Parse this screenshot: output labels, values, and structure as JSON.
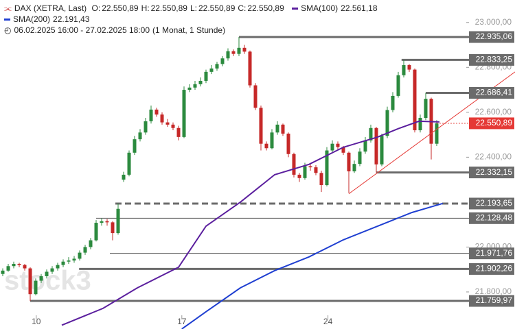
{
  "chart_data": {
    "type": "candlestick",
    "header": {
      "symbol": "DAX (XETRA, Last)",
      "fields": [
        {
          "key": "O:",
          "value": "22.550,89"
        },
        {
          "key": "H:",
          "value": "22.550,89"
        },
        {
          "key": "L:",
          "value": "22.550,89"
        },
        {
          "key": "C:",
          "value": "22.550,89"
        }
      ],
      "range": "06.02.2025 16:00 - 27.02.2025 18:00",
      "period": "(1 Monat, 1 Stunde)"
    },
    "watermark": "stock3",
    "up_color": "#2b8a3e",
    "down_color": "#c62828",
    "xlim": [
      -0.5,
      93.25
    ],
    "xticks": [
      {
        "value": 6.1,
        "label": "10"
      },
      {
        "value": 32.6,
        "label": "17"
      },
      {
        "value": 59.2,
        "label": "24"
      }
    ],
    "ylim": [
      21635,
      23100
    ],
    "yticks": [
      {
        "value": 23000,
        "label": "23.000,00"
      },
      {
        "value": 22800,
        "label": "22.800,00"
      },
      {
        "value": 22600,
        "label": "22.600,00"
      },
      {
        "value": 22400,
        "label": "22.400,00"
      },
      {
        "value": 22000,
        "label": "22.000,00"
      },
      {
        "value": 21800,
        "label": "21.800,00"
      }
    ],
    "grid": false,
    "x": [
      0,
      1,
      2,
      3,
      4,
      5,
      6,
      7,
      8,
      9,
      10,
      11,
      12,
      13,
      14,
      15,
      16,
      17,
      18,
      19,
      20,
      21,
      22,
      23,
      24,
      25,
      26,
      27,
      28,
      29,
      30,
      31,
      32,
      33,
      34,
      35,
      36,
      37,
      38,
      39,
      40,
      41,
      42,
      43,
      44,
      45,
      46,
      47,
      48,
      49,
      50,
      51,
      52,
      53,
      54,
      55,
      56,
      57,
      58,
      59,
      60,
      61,
      62,
      63,
      64,
      65,
      66,
      67,
      68,
      69,
      70,
      71,
      72,
      73,
      74,
      75,
      76,
      77,
      78,
      79
    ],
    "candles": {
      "open": [
        21880,
        21895,
        21915,
        21925,
        21920,
        21905,
        21790,
        21850,
        21870,
        21890,
        21905,
        21920,
        21935,
        21940,
        21948,
        21975,
        22000,
        22030,
        22108,
        22115,
        22110,
        22062,
        22300,
        22322,
        22420,
        22480,
        22510,
        22560,
        22612,
        22590,
        22555,
        22545,
        22530,
        22490,
        22700,
        22710,
        22725,
        22740,
        22780,
        22795,
        22815,
        22840,
        22872,
        22860,
        22887,
        22870,
        22720,
        22620,
        22460,
        22440,
        22510,
        22545,
        22505,
        22414,
        22322,
        22307,
        22360,
        22355,
        22330,
        22276,
        22430,
        22460,
        22445,
        22420,
        22337,
        22370,
        22425,
        22475,
        22530,
        22368,
        22495,
        22610,
        22673,
        22765,
        22810,
        22790,
        22520,
        22575,
        22660,
        22460
      ],
      "high": [
        21905,
        21925,
        21935,
        21930,
        21925,
        21910,
        21860,
        21880,
        21900,
        21915,
        21930,
        21945,
        21955,
        21960,
        21985,
        22010,
        22040,
        22120,
        22128,
        22125,
        22115,
        22194,
        22335,
        22430,
        22495,
        22525,
        22575,
        22630,
        22620,
        22600,
        22570,
        22555,
        22540,
        22715,
        22725,
        22740,
        22755,
        22790,
        22810,
        22825,
        22850,
        22885,
        22880,
        22935.06,
        22900,
        22875,
        22730,
        22630,
        22470,
        22525,
        22560,
        22550,
        22510,
        22420,
        22330,
        22375,
        22370,
        22365,
        22340,
        22445,
        22475,
        22470,
        22450,
        22425,
        22385,
        22440,
        22490,
        22545,
        22535,
        22505,
        22625,
        22690,
        22780,
        22833.25,
        22815,
        22795,
        22590,
        22686.41,
        22665,
        22565
      ],
      "low": [
        21870,
        21890,
        21905,
        21910,
        21895,
        21760,
        21785,
        21840,
        21860,
        21880,
        21895,
        21910,
        21925,
        21930,
        21940,
        21965,
        21990,
        22025,
        22095,
        22095,
        22030,
        22055,
        22290,
        22315,
        22410,
        22470,
        22500,
        22550,
        22580,
        22545,
        22535,
        22520,
        22475,
        22485,
        22690,
        22700,
        22715,
        22730,
        22770,
        22785,
        22805,
        22830,
        22850,
        22850,
        22860,
        22710,
        22610,
        22430,
        22430,
        22435,
        22500,
        22495,
        22400,
        22310,
        22290,
        22300,
        22340,
        22320,
        22245,
        22270,
        22420,
        22435,
        22410,
        22240,
        22330,
        22360,
        22415,
        22465,
        22332.15,
        22360,
        22485,
        22600,
        22665,
        22755,
        22780,
        22510,
        22510,
        22565,
        22390,
        22450
      ],
      "close": [
        21895,
        21915,
        21925,
        21920,
        21905,
        21790,
        21850,
        21870,
        21890,
        21905,
        21920,
        21935,
        21940,
        21948,
        21975,
        22000,
        22030,
        22108,
        22115,
        22110,
        22062,
        22170,
        22322,
        22420,
        22480,
        22510,
        22560,
        22612,
        22590,
        22555,
        22545,
        22530,
        22490,
        22700,
        22710,
        22725,
        22740,
        22780,
        22795,
        22815,
        22840,
        22872,
        22860,
        22887,
        22870,
        22720,
        22620,
        22460,
        22440,
        22510,
        22545,
        22505,
        22414,
        22322,
        22307,
        22360,
        22355,
        22330,
        22276,
        22430,
        22460,
        22445,
        22420,
        22337,
        22370,
        22425,
        22475,
        22530,
        22368,
        22495,
        22610,
        22673,
        22765,
        22810,
        22790,
        22520,
        22575,
        22660,
        22460,
        22551
      ]
    },
    "series": [
      {
        "name": "SMA(100)",
        "last_label": "22.561,18",
        "color": "#5b1f9e",
        "x": [
          10.75,
          18.25,
          24.5,
          32,
          37,
          43.25,
          49.5,
          55.75,
          62,
          68.25,
          72,
          75.75,
          79.5
        ],
        "values": [
          21652,
          21727,
          21818,
          21910,
          22093,
          22200,
          22322,
          22368,
          22444,
          22490,
          22527,
          22560,
          22557
        ]
      },
      {
        "name": "SMA(200)",
        "last_label": "22.191,43",
        "color": "#1f3fd1",
        "x": [
          32.6,
          37,
          43.25,
          49.5,
          55.75,
          62,
          68.25,
          74.5,
          80.1
        ],
        "values": [
          21635,
          21712,
          21818,
          21895,
          21956,
          22032,
          22093,
          22154,
          22194
        ]
      }
    ],
    "trendline": {
      "color": "#e53935",
      "x": [
        63,
        93.25
      ],
      "values": [
        22237,
        22780
      ]
    },
    "levels": [
      {
        "value": 22935.06,
        "label": "22.935,06",
        "style": "thick"
      },
      {
        "value": 22833.25,
        "label": "22.833,25",
        "style": "thick"
      },
      {
        "value": 22686.41,
        "label": "22.686,41",
        "style": "thick"
      },
      {
        "value": 22332.15,
        "label": "22.332,15",
        "style": "thick"
      },
      {
        "value": 22193.65,
        "label": "22.193,65",
        "style": "dashed"
      },
      {
        "value": 22128.48,
        "label": "22.128,48",
        "style": "thin"
      },
      {
        "value": 21971.76,
        "label": "21.971,76",
        "style": "thin"
      },
      {
        "value": 21902.26,
        "label": "21.902,26",
        "style": "thick"
      },
      {
        "value": 21759.97,
        "label": "21.759,97",
        "style": "thick"
      }
    ],
    "current": {
      "value": 22550.89,
      "label": "22.550,89",
      "color": "#e53935"
    }
  }
}
